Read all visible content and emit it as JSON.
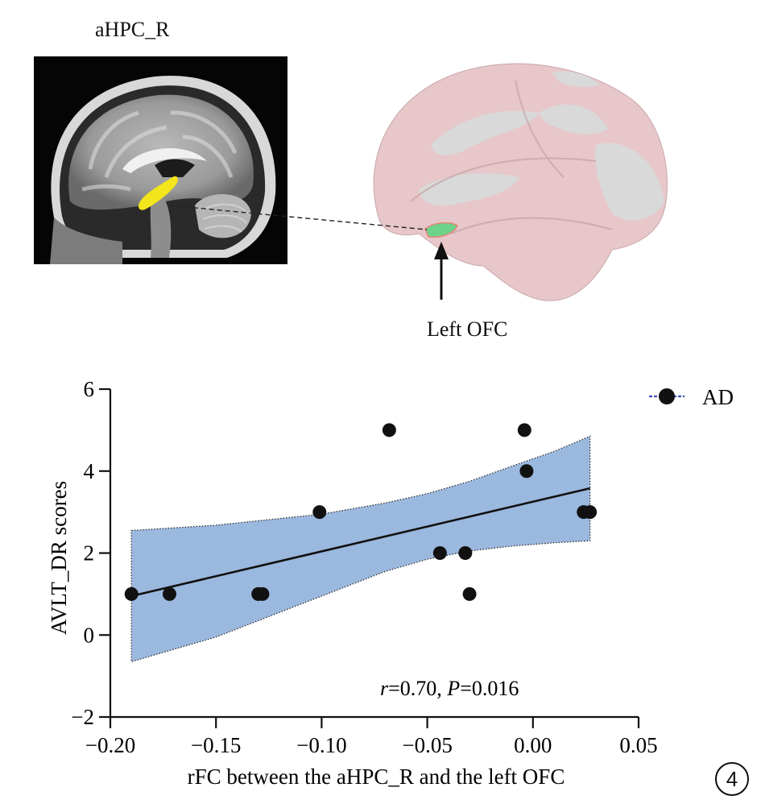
{
  "figure": {
    "seed_label": "aHPC_R",
    "target_label": "Left OFC",
    "panel_number": "4",
    "colors": {
      "roi_seed": "#f2e51c",
      "roi_target": "#6fd28a",
      "cortex_pink": "#e7c7c9",
      "cortex_gray": "#d9d9d9",
      "ci_band": "#9bb8df"
    }
  },
  "chart_data": {
    "type": "scatter",
    "xlabel": "rFC between the aHPC_R and the left OFC",
    "ylabel": "AVLT_DR scores",
    "xlim": [
      -0.2,
      0.05
    ],
    "ylim": [
      -2,
      6
    ],
    "xticks": [
      -0.2,
      -0.15,
      -0.1,
      -0.05,
      0.0,
      0.05
    ],
    "xtick_labels": [
      "−0.20",
      "−0.15",
      "−0.10",
      "−0.05",
      "0.00",
      "0.05"
    ],
    "yticks": [
      -2,
      0,
      2,
      4,
      6
    ],
    "ytick_labels": [
      "−2",
      "0",
      "2",
      "4",
      "6"
    ],
    "legend": {
      "label": "AD",
      "placement": "top-right"
    },
    "annotation": {
      "r_symbol": "r",
      "r_text": "=0.70, ",
      "p_symbol": "P",
      "p_text": "=0.016"
    },
    "series": [
      {
        "name": "AD",
        "points": [
          {
            "x": -0.19,
            "y": 1
          },
          {
            "x": -0.172,
            "y": 1
          },
          {
            "x": -0.13,
            "y": 1
          },
          {
            "x": -0.128,
            "y": 1
          },
          {
            "x": -0.101,
            "y": 3
          },
          {
            "x": -0.068,
            "y": 5
          },
          {
            "x": -0.044,
            "y": 2
          },
          {
            "x": -0.032,
            "y": 2
          },
          {
            "x": -0.03,
            "y": 1
          },
          {
            "x": -0.004,
            "y": 5
          },
          {
            "x": -0.003,
            "y": 4
          },
          {
            "x": 0.024,
            "y": 3
          },
          {
            "x": 0.027,
            "y": 3
          }
        ]
      }
    ],
    "fit_line": {
      "x": [
        -0.19,
        0.027
      ],
      "y": [
        0.95,
        3.58
      ]
    },
    "ci_upper": {
      "x": [
        -0.19,
        -0.15,
        -0.1,
        -0.07,
        -0.05,
        -0.03,
        -0.01,
        0.01,
        0.027
      ],
      "y": [
        2.55,
        2.68,
        2.95,
        3.22,
        3.45,
        3.75,
        4.12,
        4.48,
        4.85
      ]
    },
    "ci_lower": {
      "x": [
        -0.19,
        -0.15,
        -0.1,
        -0.07,
        -0.05,
        -0.03,
        -0.01,
        0.01,
        0.027
      ],
      "y": [
        -0.65,
        -0.05,
        0.95,
        1.55,
        1.85,
        2.05,
        2.17,
        2.25,
        2.3
      ]
    }
  }
}
